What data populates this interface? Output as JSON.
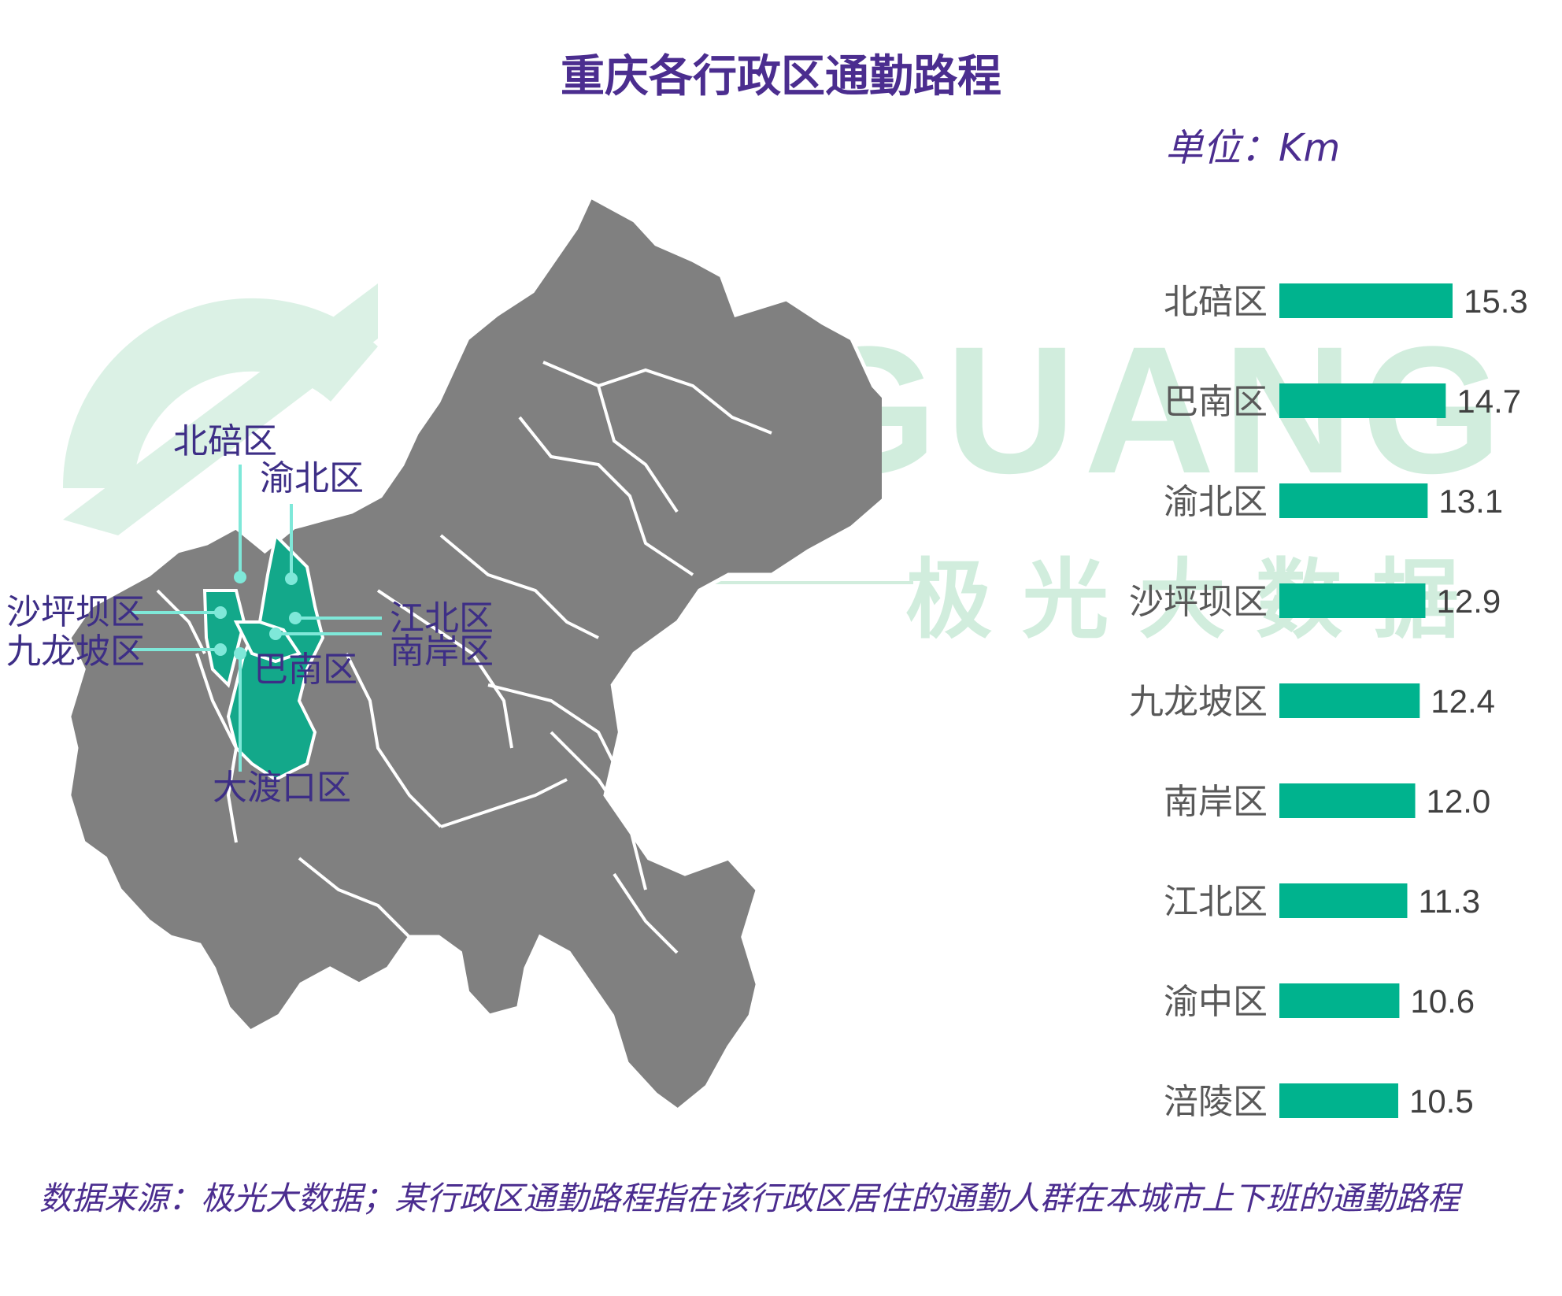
{
  "title": "重庆各行政区通勤路程",
  "unit_label": "单位：Km",
  "watermark": {
    "latin": "JIGUANG",
    "chinese": "极 光 大 数 据"
  },
  "colors": {
    "bar": "#00b38e",
    "title": "#4b2d8f",
    "map_gray": "#808080",
    "map_highlight": "#13a88a",
    "leader_line": "#7fe8d9"
  },
  "map_labels": [
    {
      "name": "北碚区"
    },
    {
      "name": "渝北区"
    },
    {
      "name": "沙坪坝区"
    },
    {
      "name": "九龙坡区"
    },
    {
      "name": "江北区"
    },
    {
      "name": "南岸区"
    },
    {
      "name": "巴南区"
    },
    {
      "name": "大渡口区"
    }
  ],
  "chart_data": {
    "type": "bar",
    "orientation": "horizontal",
    "categories": [
      "北碚区",
      "巴南区",
      "渝北区",
      "沙坪坝区",
      "九龙坡区",
      "南岸区",
      "江北区",
      "渝中区",
      "涪陵区"
    ],
    "values": [
      15.3,
      14.7,
      13.1,
      12.9,
      12.4,
      12.0,
      11.3,
      10.6,
      10.5
    ],
    "data_labels": [
      "15.3",
      "14.7",
      "13.1",
      "12.9",
      "12.4",
      "12.0",
      "11.3",
      "10.6",
      "10.5"
    ],
    "unit": "Km",
    "xlim": [
      0,
      15.3
    ],
    "grid": false
  },
  "source_text": "数据来源：极光大数据；某行政区通勤路程指在该行政区居住的通勤人群在本城市上下班的通勤路程"
}
